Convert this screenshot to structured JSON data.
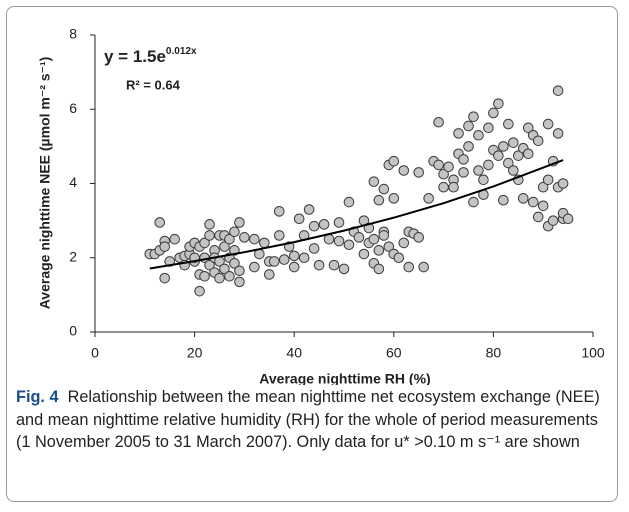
{
  "chart_data": {
    "type": "scatter",
    "xlabel": "Average nighttime RH (%)",
    "ylabel": "Average nighttime NEE (µmol m⁻² s⁻¹)",
    "annotations": {
      "equation": "y = 1.5e",
      "exponent": "0.012x",
      "r_squared": "R² = 0.64"
    },
    "xlim": [
      0,
      100
    ],
    "xticks": [
      0,
      20,
      40,
      60,
      80,
      100
    ],
    "ylim": [
      0,
      8
    ],
    "yticks": [
      0,
      2,
      4,
      6,
      8
    ],
    "grid": false,
    "color": "#c4c4c4",
    "edge_color": "#3a3a3a",
    "x": [
      11,
      12,
      13,
      13,
      14,
      14,
      14,
      15,
      16,
      17,
      18,
      18,
      19,
      19,
      20,
      20,
      20,
      21,
      21,
      21,
      22,
      22,
      22,
      23,
      23,
      23,
      24,
      24,
      24,
      25,
      25,
      25,
      26,
      26,
      26,
      27,
      27,
      27,
      28,
      28,
      28,
      29,
      29,
      29,
      30,
      32,
      32,
      33,
      34,
      35,
      35,
      36,
      37,
      37,
      38,
      39,
      40,
      40,
      41,
      42,
      42,
      43,
      44,
      44,
      45,
      46,
      47,
      48,
      49,
      49,
      50,
      51,
      51,
      52,
      53,
      54,
      54,
      55,
      55,
      56,
      56,
      56,
      57,
      57,
      57,
      58,
      58,
      58,
      59,
      59,
      60,
      60,
      60,
      61,
      62,
      62,
      63,
      63,
      64,
      65,
      65,
      66,
      67,
      68,
      69,
      69,
      70,
      70,
      71,
      72,
      72,
      73,
      73,
      74,
      74,
      75,
      75,
      76,
      76,
      77,
      77,
      78,
      78,
      79,
      79,
      80,
      80,
      81,
      81,
      82,
      82,
      83,
      83,
      84,
      84,
      85,
      85,
      86,
      86,
      87,
      87,
      88,
      88,
      89,
      89,
      90,
      90,
      91,
      91,
      91,
      92,
      92,
      93,
      93,
      93,
      94,
      94,
      94,
      95
    ],
    "values": [
      2.1,
      2.1,
      2.95,
      2.2,
      2.45,
      2.3,
      1.45,
      1.9,
      2.5,
      2.0,
      2.05,
      1.8,
      2.1,
      2.3,
      2.4,
      1.9,
      2.0,
      1.1,
      1.55,
      2.3,
      1.5,
      2.0,
      2.4,
      2.6,
      2.9,
      1.8,
      2.2,
      1.6,
      2.0,
      2.6,
      1.9,
      1.45,
      2.3,
      2.6,
      1.7,
      2.5,
      2.0,
      1.5,
      2.7,
      1.85,
      2.2,
      2.95,
      1.65,
      1.35,
      2.55,
      2.5,
      1.75,
      2.1,
      2.4,
      1.55,
      1.9,
      1.9,
      2.6,
      3.25,
      1.95,
      2.3,
      2.05,
      1.75,
      3.05,
      2.6,
      2.0,
      3.3,
      2.85,
      2.25,
      1.8,
      2.9,
      2.5,
      1.8,
      2.95,
      2.45,
      1.7,
      2.35,
      3.5,
      2.7,
      2.55,
      3.0,
      2.1,
      2.8,
      2.4,
      2.5,
      4.05,
      1.85,
      3.55,
      2.2,
      1.7,
      3.85,
      2.7,
      2.6,
      2.3,
      4.5,
      4.6,
      3.6,
      2.1,
      2.0,
      2.4,
      4.35,
      1.75,
      2.7,
      2.65,
      4.3,
      2.55,
      1.75,
      3.6,
      4.6,
      4.5,
      5.65,
      3.9,
      4.25,
      4.45,
      4.1,
      3.9,
      4.8,
      5.35,
      4.65,
      4.3,
      5.55,
      5.0,
      5.8,
      3.5,
      4.35,
      5.3,
      4.1,
      3.7,
      5.5,
      4.5,
      4.9,
      5.9,
      6.15,
      4.75,
      5.0,
      3.55,
      5.6,
      4.55,
      4.35,
      5.1,
      4.75,
      4.1,
      3.6,
      4.95,
      5.5,
      4.8,
      3.5,
      5.3,
      5.15,
      3.1,
      3.9,
      3.4,
      4.1,
      2.85,
      5.6,
      4.6,
      3.0,
      6.5,
      5.35,
      3.9,
      3.05,
      4.0,
      3.2,
      3.05
    ],
    "trendline": {
      "color": "#000000",
      "x": [
        11,
        20,
        30,
        40,
        50,
        60,
        70,
        80,
        94
      ],
      "values": [
        1.71,
        1.91,
        2.15,
        2.42,
        2.73,
        3.08,
        3.47,
        3.92,
        4.63
      ]
    }
  },
  "caption": {
    "label": "Fig. 4",
    "text": "Relationship between the mean nighttime net ecosystem exchange (NEE) and mean nighttime relative humidity (RH) for the whole of period measurements (1 November 2005 to 31 March 2007). Only data for u* >0.10 m s⁻¹ are shown"
  }
}
